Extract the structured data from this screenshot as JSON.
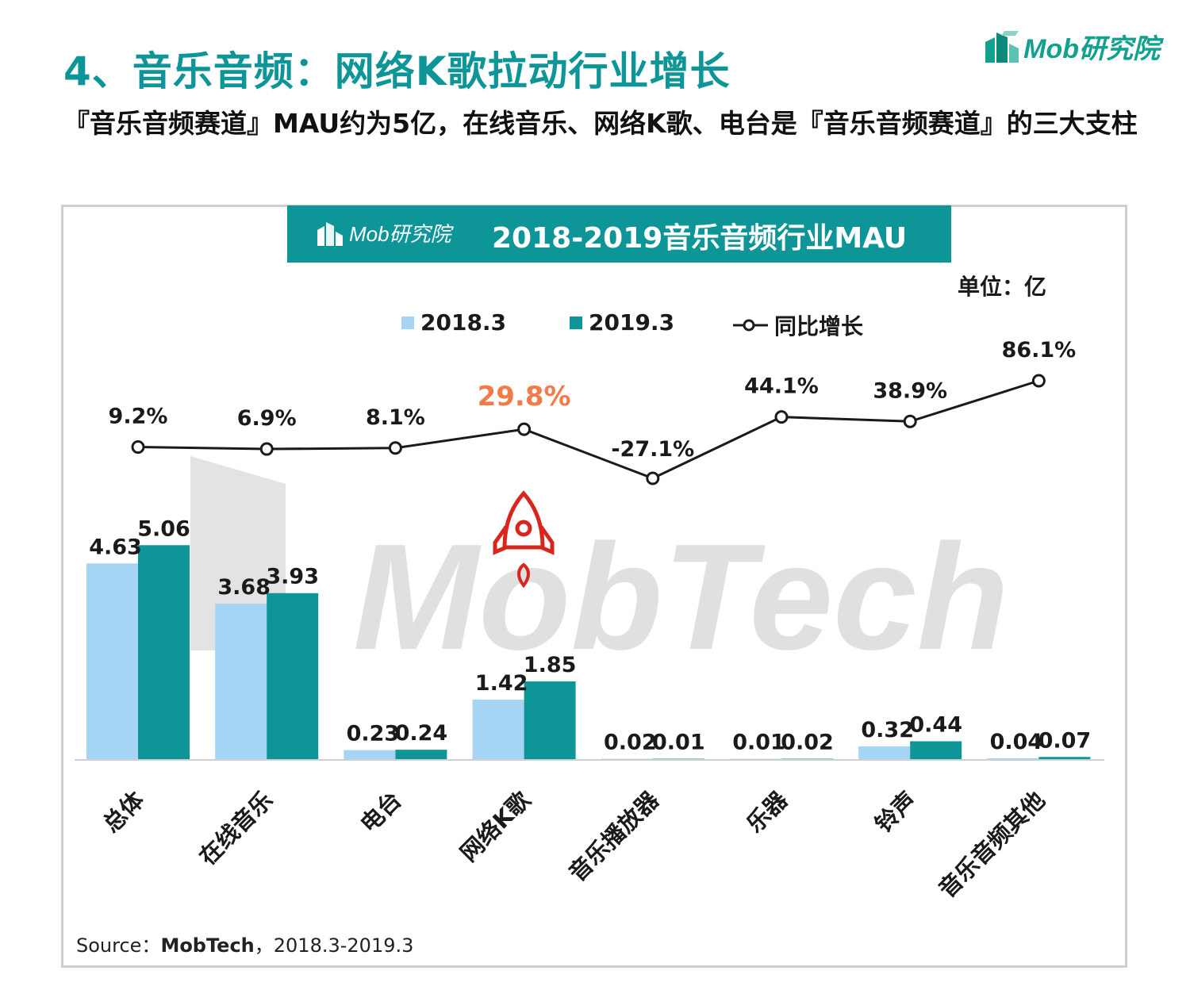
{
  "header": {
    "title": "4、音乐音频：网络K歌拉动行业增长",
    "subtitle": "『音乐音频赛道』MAU约为5亿，在线音乐、网络K歌、电台是『音乐音频赛道』的三大支柱",
    "brand": "Mob研究院"
  },
  "chart_banner": {
    "logo_text": "Mob研究院",
    "title": "2018-2019音乐音频行业MAU"
  },
  "unit_label": "单位：亿",
  "watermark": "MobTech",
  "colors": {
    "teal": "#0e9597",
    "light_blue": "#a6d4f5",
    "highlight": "#f07c4a",
    "rocket": "#d9261c"
  },
  "chart_data": {
    "type": "bar",
    "categories": [
      "总体",
      "在线音乐",
      "电台",
      "网络K歌",
      "音乐播放器",
      "乐器",
      "铃声",
      "音乐音频其他"
    ],
    "series": [
      {
        "name": "2018.3",
        "type": "bar",
        "values": [
          4.63,
          3.68,
          0.23,
          1.42,
          0.02,
          0.01,
          0.32,
          0.04
        ]
      },
      {
        "name": "2019.3",
        "type": "bar",
        "values": [
          5.06,
          3.93,
          0.24,
          1.85,
          0.01,
          0.02,
          0.44,
          0.07
        ]
      },
      {
        "name": "同比增长",
        "type": "line",
        "values": [
          9.2,
          6.9,
          8.1,
          29.8,
          -27.1,
          44.1,
          38.9,
          86.1
        ],
        "labels": [
          "9.2%",
          "6.9%",
          "8.1%",
          "29.8%",
          "-27.1%",
          "44.1%",
          "38.9%",
          "86.1%"
        ],
        "highlight_index": 3
      }
    ],
    "bar_labels_2018": [
      "4.63",
      "3.68",
      "0.23",
      "1.42",
      "0.02",
      "0.01",
      "0.32",
      "0.04"
    ],
    "bar_labels_2019": [
      "5.06",
      "3.93",
      "0.24",
      "1.85",
      "0.01",
      "0.02",
      "0.44",
      "0.07"
    ],
    "legend_position": "top"
  },
  "source": {
    "prefix": "Source：",
    "name": "MobTech",
    "suffix": "，2018.3-2019.3"
  }
}
